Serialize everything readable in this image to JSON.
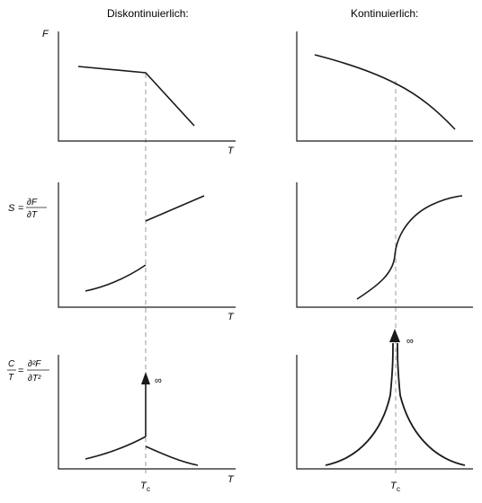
{
  "columns": {
    "left_title": "Diskontinuierlich:",
    "right_title": "Kontinuierlich:"
  },
  "labels": {
    "F": "F",
    "S": "S",
    "equals": "=",
    "dF": "∂F",
    "dT": "∂T",
    "C": "C",
    "T": "T",
    "d2F": "∂²F",
    "dT2": "∂T²",
    "T_axis": "T",
    "Tc_main": "T",
    "Tc_sub": "c",
    "infinity": "∞"
  },
  "colors": {
    "ink": "#1a1a1a",
    "guide": "#999999"
  }
}
